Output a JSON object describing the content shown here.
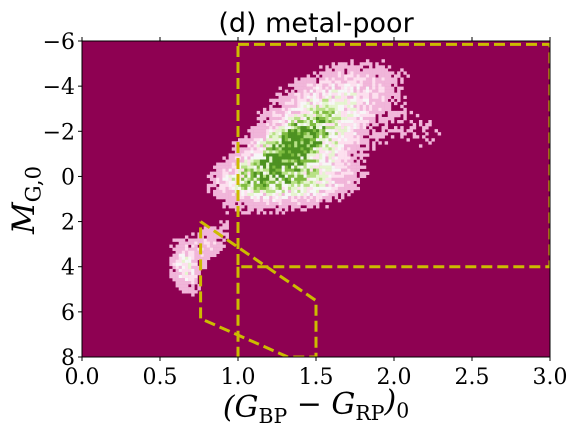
{
  "chart_data": {
    "type": "heatmap",
    "title": "(d) metal-poor",
    "xlabel": "(G_BP − G_RP)_0",
    "ylabel": "M_G,0",
    "xlim": [
      0.0,
      3.0
    ],
    "ylim": [
      8,
      -6
    ],
    "y_inverted": true,
    "x_ticks": [
      0.0,
      0.5,
      1.0,
      1.5,
      2.0,
      2.5,
      3.0
    ],
    "x_tick_labels": [
      "0.0",
      "0.5",
      "1.0",
      "1.5",
      "2.0",
      "2.5",
      "3.0"
    ],
    "y_ticks": [
      -6,
      -4,
      -2,
      0,
      2,
      4,
      6,
      8
    ],
    "y_tick_labels": [
      "−6",
      "−4",
      "−2",
      "0",
      "2",
      "4",
      "6",
      "8"
    ],
    "background_color": "#8e0152",
    "density_colors": [
      "#f1b6da",
      "#fde0ef",
      "#f7f7f7",
      "#e6f5d0",
      "#b8e186",
      "#7fbc41",
      "#4d9221"
    ],
    "outline_color": "#ccbb00",
    "density_clumps": [
      {
        "x": 1.38,
        "y": -1.2,
        "sx": 0.23,
        "sy": 1.25,
        "rho": -0.55,
        "weight": 1.0
      },
      {
        "x": 1.36,
        "y": -1.5,
        "sx": 0.11,
        "sy": 0.6,
        "rho": -0.7,
        "weight": 1.0
      },
      {
        "x": 1.12,
        "y": 0.1,
        "sx": 0.14,
        "sy": 0.5,
        "rho": -0.2,
        "weight": 0.6
      },
      {
        "x": 1.5,
        "y": 0.3,
        "sx": 0.17,
        "sy": 0.6,
        "rho": -0.3,
        "weight": 0.45
      },
      {
        "x": 1.65,
        "y": -3.6,
        "sx": 0.25,
        "sy": 0.9,
        "rho": -0.4,
        "weight": 0.35
      },
      {
        "x": 0.66,
        "y": 4.0,
        "sx": 0.06,
        "sy": 0.7,
        "rho": 0.3,
        "weight": 0.45
      },
      {
        "x": 0.8,
        "y": 3.0,
        "sx": 0.09,
        "sy": 0.6,
        "rho": -0.5,
        "weight": 0.25
      },
      {
        "x": 2.15,
        "y": -2.0,
        "sx": 0.22,
        "sy": 0.9,
        "rho": 0.0,
        "weight": 0.1
      }
    ],
    "selection_regions": [
      {
        "name": "red-giant-box",
        "points": [
          [
            1.0,
            -5.85
          ],
          [
            3.0,
            -5.85
          ],
          [
            3.0,
            4.0
          ],
          [
            1.0,
            4.0
          ],
          [
            1.0,
            -5.85
          ]
        ]
      },
      {
        "name": "red-clump-line",
        "points": [
          [
            1.0,
            4.0
          ],
          [
            1.0,
            8.0
          ]
        ]
      },
      {
        "name": "main-sequence-polygon",
        "points": [
          [
            0.76,
            2.0
          ],
          [
            1.5,
            5.5
          ],
          [
            1.5,
            8.0
          ],
          [
            1.32,
            8.0
          ],
          [
            0.76,
            6.3
          ],
          [
            0.76,
            2.0
          ]
        ]
      }
    ]
  }
}
